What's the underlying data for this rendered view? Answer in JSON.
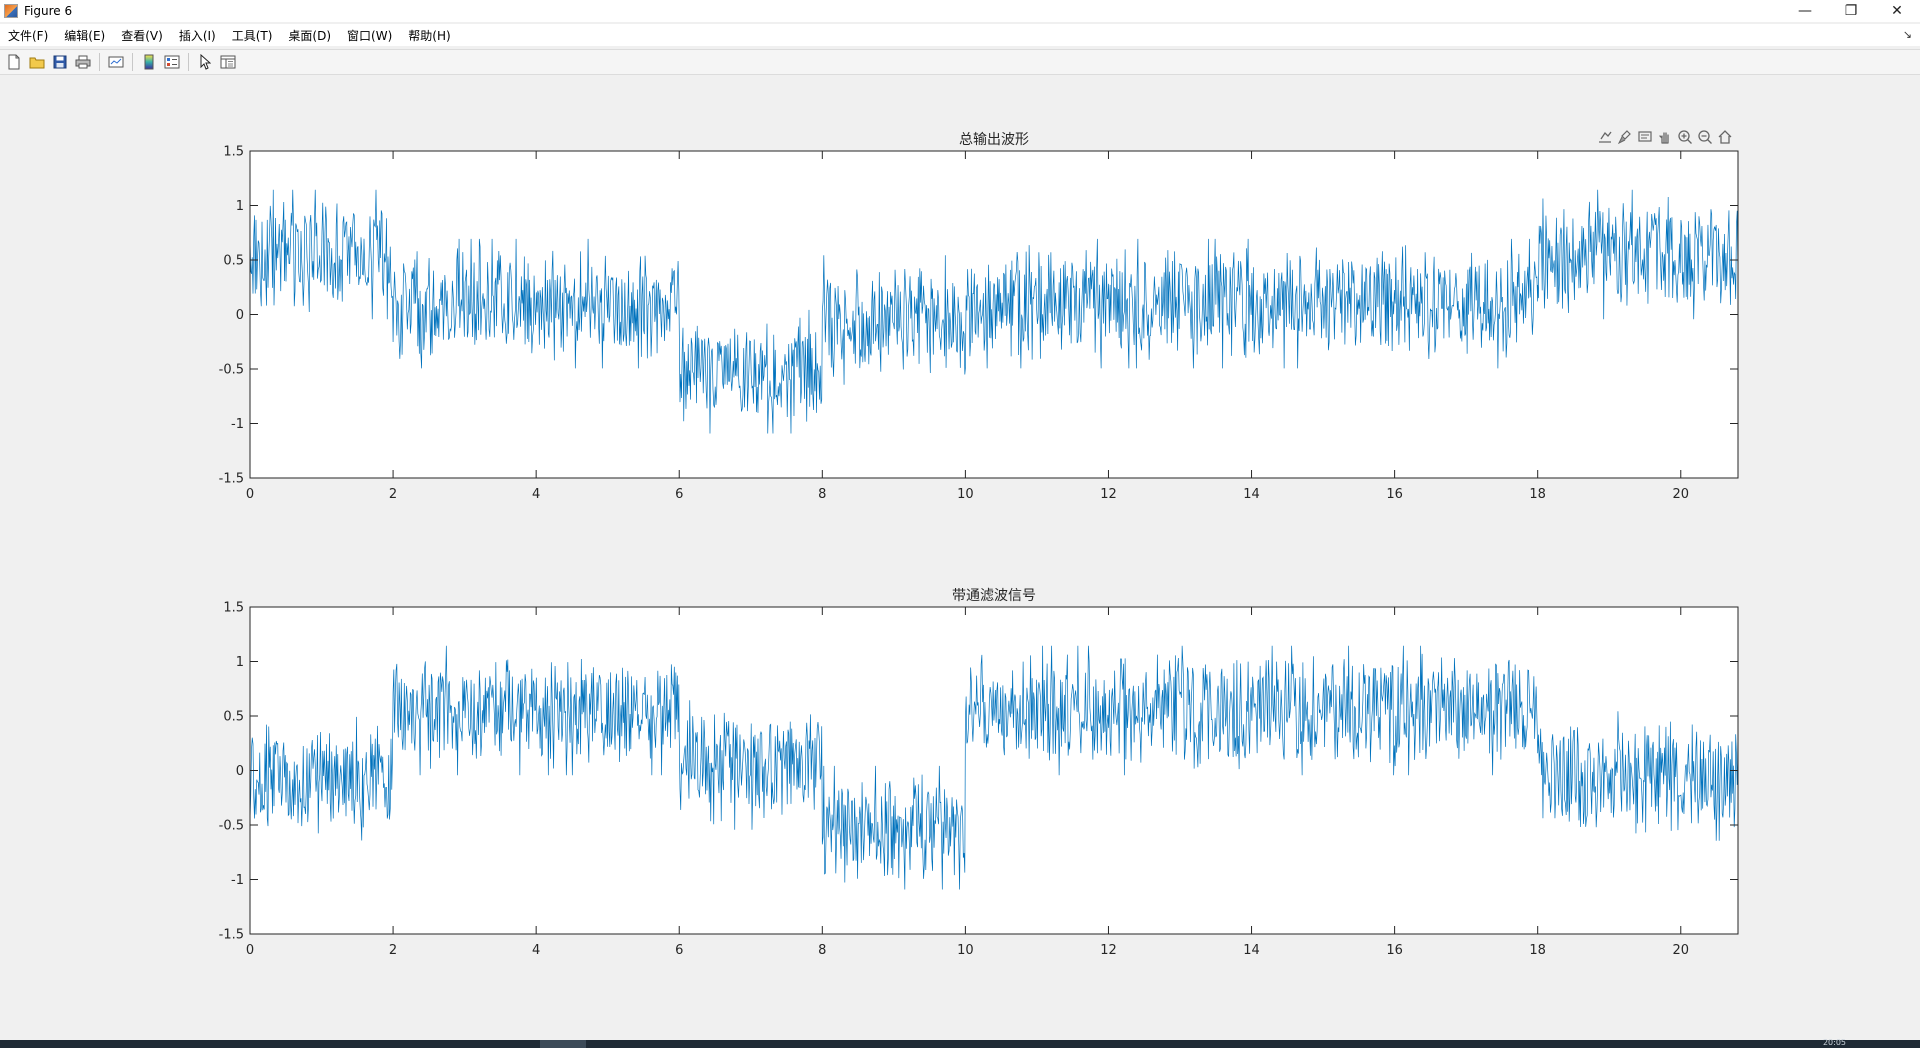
{
  "window": {
    "title": "Figure 6",
    "controls": [
      "—",
      "❐",
      "✕"
    ]
  },
  "menu": [
    {
      "label": "文件(F)"
    },
    {
      "label": "编辑(E)"
    },
    {
      "label": "查看(V)"
    },
    {
      "label": "插入(I)"
    },
    {
      "label": "工具(T)"
    },
    {
      "label": "桌面(D)"
    },
    {
      "label": "窗口(W)"
    },
    {
      "label": "帮助(H)"
    }
  ],
  "toolbar_icons": [
    "new-figure-icon",
    "open-file-icon",
    "save-icon",
    "print-icon",
    "link-plot-icon",
    "colorbar-icon",
    "legend-icon",
    "edit-plot-icon",
    "property-inspector-icon"
  ],
  "axes_toolbar_icons": [
    "export-icon",
    "brush-icon",
    "data-tips-icon",
    "pan-icon",
    "zoom-in-icon",
    "zoom-out-icon",
    "home-icon"
  ],
  "taskbar": {
    "clock": "20:05"
  },
  "colors": {
    "line": "#0072bd",
    "axes_bg": "#ffffff",
    "figure_bg": "#f0f0f0"
  },
  "chart_data": [
    {
      "type": "line",
      "title": "总输出波形",
      "xlabel": "",
      "ylabel": "",
      "xlim": [
        0,
        20.8
      ],
      "ylim": [
        -1.5,
        1.5
      ],
      "xticks": [
        0,
        2,
        4,
        6,
        8,
        10,
        12,
        14,
        16,
        18,
        20
      ],
      "yticks": [
        -1.5,
        -1,
        -0.5,
        0,
        0.5,
        1,
        1.5
      ],
      "grid": false,
      "series": [
        {
          "segments": [
            {
              "x0": 0,
              "x1": 2,
              "min": 0,
              "max": 1.1
            },
            {
              "x0": 2,
              "x1": 6,
              "min": -0.45,
              "max": 0.65
            },
            {
              "x0": 6,
              "x1": 8,
              "min": -1.05,
              "max": 0
            },
            {
              "x0": 8,
              "x1": 10,
              "min": -0.6,
              "max": 0.5
            },
            {
              "x0": 10,
              "x1": 18,
              "min": -0.45,
              "max": 0.65
            },
            {
              "x0": 18,
              "x1": 20.8,
              "min": 0,
              "max": 1.1
            }
          ]
        }
      ]
    },
    {
      "type": "line",
      "title": "带通滤波信号",
      "xlabel": "",
      "ylabel": "",
      "xlim": [
        0,
        20.8
      ],
      "ylim": [
        -1.5,
        1.5
      ],
      "xticks": [
        0,
        2,
        4,
        6,
        8,
        10,
        12,
        14,
        16,
        18,
        20
      ],
      "yticks": [
        -1.5,
        -1,
        -0.5,
        0,
        0.5,
        1,
        1.5
      ],
      "grid": false,
      "series": [
        {
          "segments": [
            {
              "x0": 0,
              "x1": 2,
              "min": -0.6,
              "max": 0.45
            },
            {
              "x0": 2,
              "x1": 6,
              "min": 0,
              "max": 1.1
            },
            {
              "x0": 6,
              "x1": 8,
              "min": -0.5,
              "max": 0.6
            },
            {
              "x0": 8,
              "x1": 10,
              "min": -1.05,
              "max": 0
            },
            {
              "x0": 10,
              "x1": 18,
              "min": 0,
              "max": 1.1
            },
            {
              "x0": 18,
              "x1": 20.8,
              "min": -0.6,
              "max": 0.5
            }
          ]
        }
      ]
    }
  ]
}
